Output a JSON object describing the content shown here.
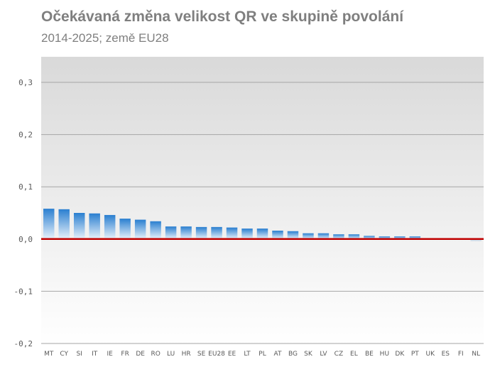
{
  "title": "Očekávaná změna velikost QR ve skupině povolání",
  "subtitle": "2014-2025; země EU28",
  "chart_data": {
    "type": "bar",
    "title": "Očekávaná změna velikost QR ve skupině povolání",
    "subtitle": "2014-2025; země EU28",
    "xlabel": "",
    "ylabel": "",
    "categories": [
      "MT",
      "CY",
      "SI",
      "IT",
      "IE",
      "FR",
      "DE",
      "RO",
      "LU",
      "HR",
      "SE",
      "EU28",
      "EE",
      "LT",
      "PL",
      "AT",
      "BG",
      "SK",
      "LV",
      "CZ",
      "EL",
      "BE",
      "HU",
      "DK",
      "PT",
      "UK",
      "ES",
      "FI",
      "NL"
    ],
    "values": [
      0.058,
      0.057,
      0.05,
      0.049,
      0.046,
      0.039,
      0.037,
      0.034,
      0.024,
      0.024,
      0.023,
      0.023,
      0.022,
      0.02,
      0.02,
      0.016,
      0.015,
      0.011,
      0.011,
      0.009,
      0.009,
      0.006,
      0.005,
      0.005,
      0.005,
      0.0,
      0.0,
      0.0,
      -0.004
    ],
    "ylim": [
      -0.2,
      0.3
    ],
    "yticks": [
      -0.2,
      -0.1,
      0.0,
      0.1,
      0.2,
      0.3
    ],
    "ytick_labels": [
      "-0,2",
      "-0,1",
      "0,0",
      "0,1",
      "0,2",
      "0,3"
    ],
    "grid": true,
    "legend": "none",
    "colors": {
      "bar_top": "#2a7fd0",
      "bar_bottom": "#e8f2fb",
      "zero_line": "#c00000",
      "grid": "#a6a6a6",
      "plot_bg_top": "#d9d9d9",
      "plot_bg_bottom": "#ffffff",
      "text": "#7f7f7f"
    }
  }
}
